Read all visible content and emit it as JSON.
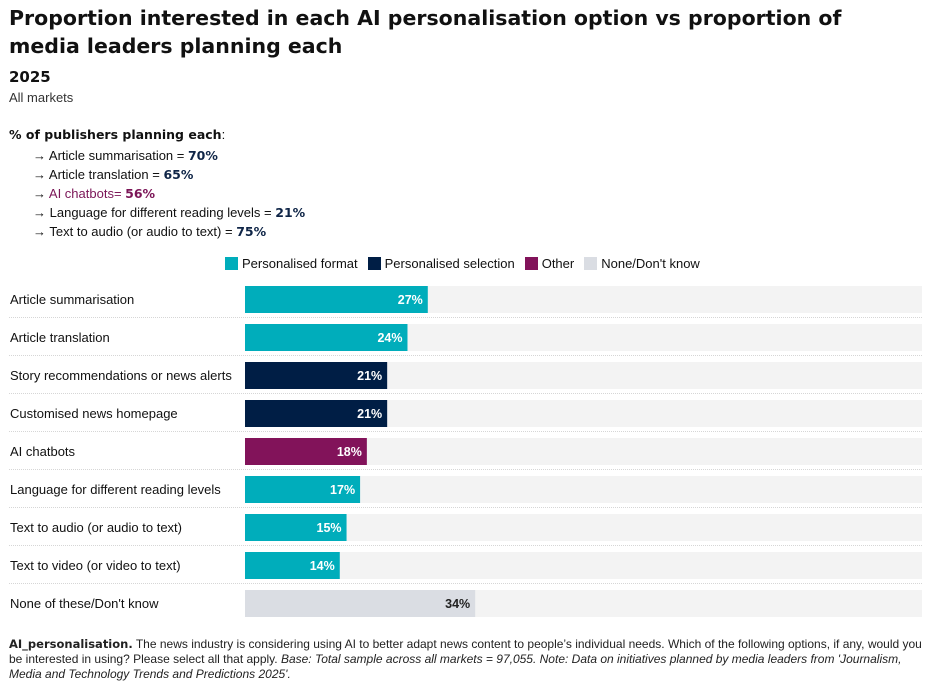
{
  "header": {
    "title": "Proportion interested in each AI personalisation option vs proportion of media leaders planning each",
    "year": "2025",
    "markets": "All markets"
  },
  "planning": {
    "heading": "% of publishers planning each",
    "heading_suffix": ":",
    "arrow": "→",
    "items": [
      {
        "label": "Article summarisation = ",
        "value": "70%",
        "color": "#0f2547"
      },
      {
        "label": "Article translation = ",
        "value": "65%",
        "color": "#0f2547"
      },
      {
        "label": "AI chatbots= ",
        "value": "56%",
        "color": "#7b1557"
      },
      {
        "label": "Language for different reading levels = ",
        "value": "21%",
        "color": "#0f2547"
      },
      {
        "label": "Text to audio (or audio to text) = ",
        "value": "75%",
        "color": "#0f2547"
      }
    ]
  },
  "legend": [
    {
      "name": "Personalised format",
      "color": "#00adbb"
    },
    {
      "name": "Personalised selection",
      "color": "#001e45"
    },
    {
      "name": "Other",
      "color": "#82135a"
    },
    {
      "name": "None/Don't know",
      "color": "#dadde3"
    }
  ],
  "chart_data": {
    "type": "bar",
    "orientation": "horizontal",
    "xlim": [
      0,
      100
    ],
    "grid": false,
    "categories": [
      "Article summarisation",
      "Article translation",
      "Story recommendations or news alerts",
      "Customised news homepage",
      "AI chatbots",
      "Language for different reading levels",
      "Text to audio (or audio to text)",
      "Text to video (or video to text)",
      "None of these/Don't know"
    ],
    "values": [
      27,
      24,
      21,
      21,
      18,
      17,
      15,
      14,
      34
    ],
    "value_labels": [
      "27%",
      "24%",
      "21%",
      "21%",
      "18%",
      "17%",
      "15%",
      "14%",
      "34%"
    ],
    "groups": [
      "Personalised format",
      "Personalised format",
      "Personalised selection",
      "Personalised selection",
      "Other",
      "Personalised format",
      "Personalised format",
      "Personalised format",
      "None/Don't know"
    ],
    "background_color": "#f3f3f3"
  },
  "footer": {
    "bold": "AI_personalisation.",
    "text": " The news industry is considering using AI to better adapt news content to people’s individual needs. Which of the following options, if any, would you be interested in using? Please select all that apply. ",
    "italic": "Base: Total sample across all markets = 97,055. Note: Data on initiatives planned by media leaders from 'Journalism, Media and Technology Trends and Predictions 2025'."
  }
}
